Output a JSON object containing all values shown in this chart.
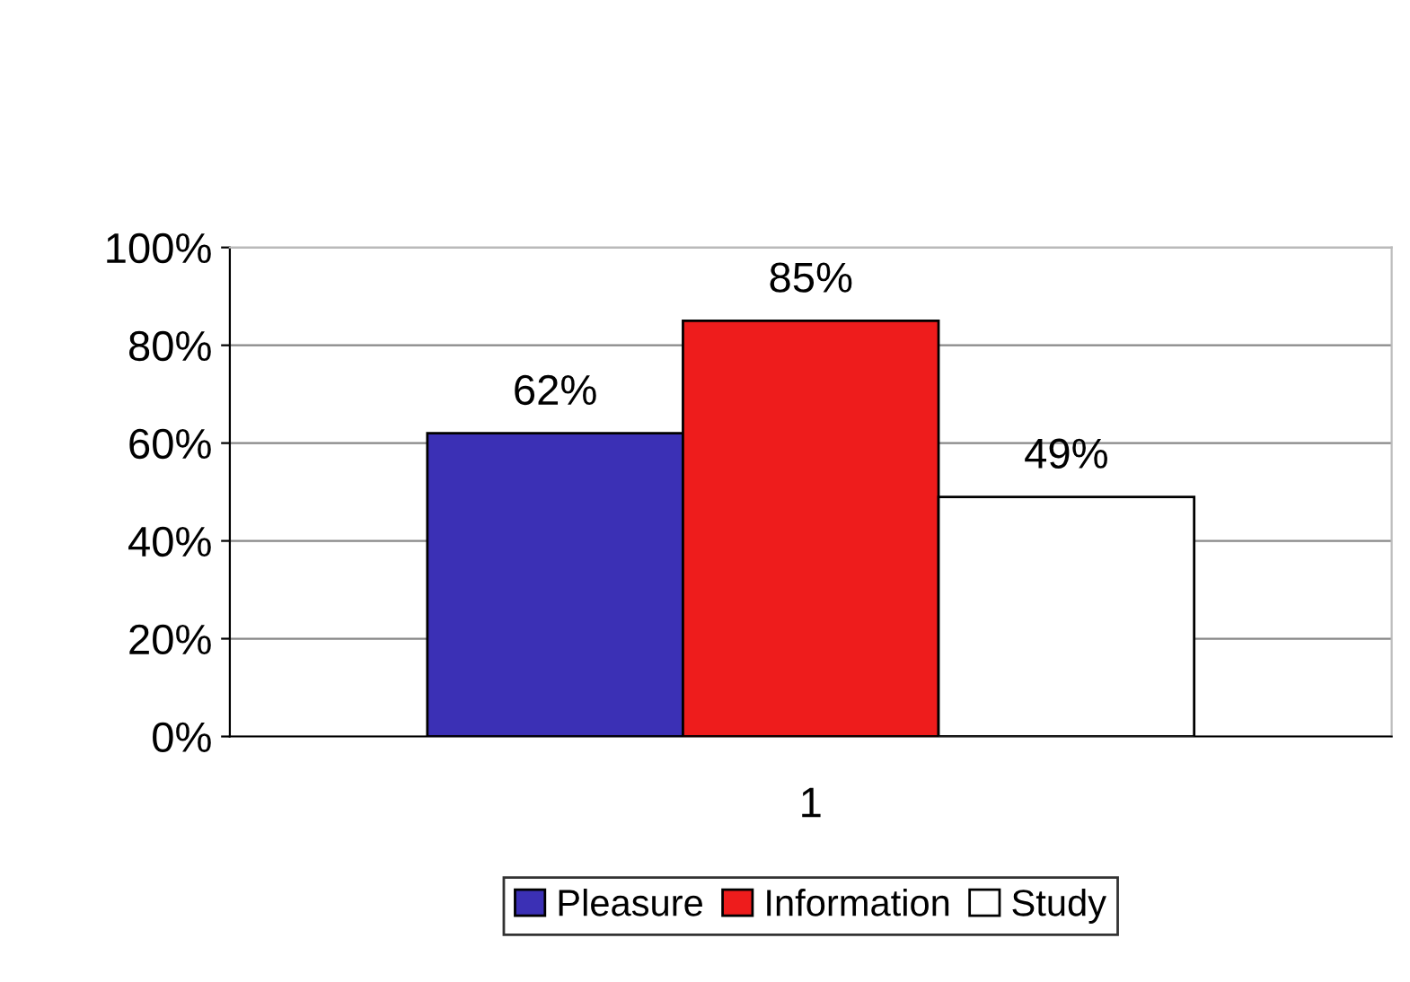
{
  "chart_data": {
    "type": "bar",
    "categories": [
      "1"
    ],
    "series": [
      {
        "name": "Pleasure",
        "color": "#3b30b5",
        "values": [
          62
        ],
        "value_labels": [
          "62%"
        ]
      },
      {
        "name": "Information",
        "color": "#ee1c1c",
        "values": [
          85
        ],
        "value_labels": [
          "85%"
        ]
      },
      {
        "name": "Study",
        "color": "#ffffff",
        "values": [
          49
        ],
        "value_labels": [
          "49%"
        ]
      }
    ],
    "ylim": [
      0,
      100
    ],
    "yticks": [
      {
        "value": 0,
        "label": "0%"
      },
      {
        "value": 20,
        "label": "20%"
      },
      {
        "value": 40,
        "label": "40%"
      },
      {
        "value": 60,
        "label": "60%"
      },
      {
        "value": 80,
        "label": "80%"
      },
      {
        "value": 100,
        "label": "100%"
      }
    ],
    "grid": "y",
    "legend": "bottom"
  }
}
